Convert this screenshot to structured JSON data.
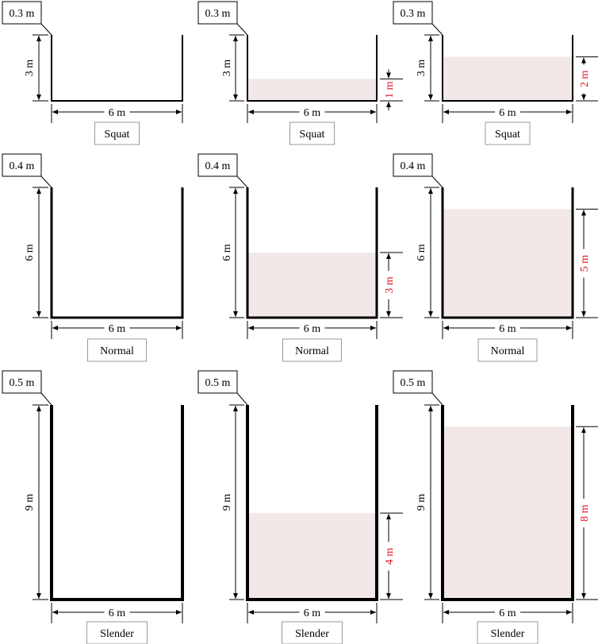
{
  "legend": {
    "water_color": "#f3e8e8",
    "wall_color": "#000000",
    "water_label_color": "#e0141e",
    "box_border_color": "#999999"
  },
  "panels": [
    {
      "type_label": "Squat",
      "thickness_label": "0.3 m",
      "height_label": "3 m",
      "width_label": "6 m",
      "water_label": ""
    },
    {
      "type_label": "Squat",
      "thickness_label": "0.3 m",
      "height_label": "3 m",
      "width_label": "6 m",
      "water_label": "1 m"
    },
    {
      "type_label": "Squat",
      "thickness_label": "0.3 m",
      "height_label": "3 m",
      "width_label": "6 m",
      "water_label": "2 m"
    },
    {
      "type_label": "Normal",
      "thickness_label": "0.4 m",
      "height_label": "6 m",
      "width_label": "6 m",
      "water_label": ""
    },
    {
      "type_label": "Normal",
      "thickness_label": "0.4 m",
      "height_label": "6 m",
      "width_label": "6 m",
      "water_label": "3 m"
    },
    {
      "type_label": "Normal",
      "thickness_label": "0.4 m",
      "height_label": "6 m",
      "width_label": "6 m",
      "water_label": "5 m"
    },
    {
      "type_label": "Slender",
      "thickness_label": "0.5 m",
      "height_label": "9 m",
      "width_label": "6 m",
      "water_label": ""
    },
    {
      "type_label": "Slender",
      "thickness_label": "0.5 m",
      "height_label": "9 m",
      "width_label": "6 m",
      "water_label": "4 m"
    },
    {
      "type_label": "Slender",
      "thickness_label": "0.5 m",
      "height_label": "9 m",
      "width_label": "6 m",
      "water_label": "8 m"
    }
  ]
}
